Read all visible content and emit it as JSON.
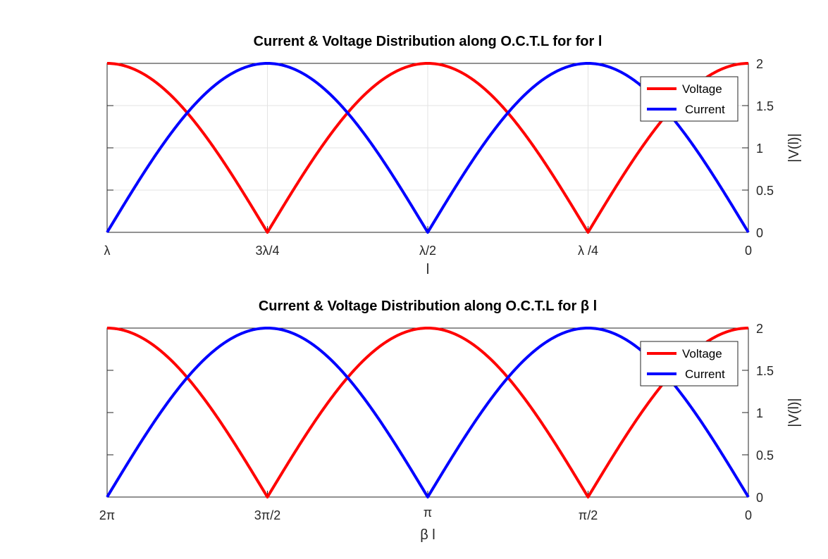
{
  "chart_data": [
    {
      "type": "line",
      "title": "Current & Voltage Distribution along O.C.T.L for for l",
      "xlabel": "l",
      "ylabel": "|V(l)|",
      "x_tick_labels": [
        "λ",
        "3λ/4",
        "λ/2",
        "λ /4",
        "0"
      ],
      "y_tick_labels": [
        "0",
        "0.5",
        "1",
        "1.5",
        "2"
      ],
      "xlim": [
        0,
        6.2832
      ],
      "x_reversed": true,
      "ylim": [
        0,
        2
      ],
      "y_axis_location": "right",
      "grid": true,
      "legend_position": "top-right",
      "series": [
        {
          "name": "Voltage",
          "color": "#ff0000",
          "function": "2*|cos(x)|"
        },
        {
          "name": "Current",
          "color": "#0000ff",
          "function": "2*|sin(x)|"
        }
      ]
    },
    {
      "type": "line",
      "title": "Current & Voltage Distribution along O.C.T.L for β l",
      "xlabel": "β l",
      "ylabel": "|V(l)|",
      "x_tick_labels": [
        "2π",
        "3π/2",
        "π",
        "π/2",
        "0"
      ],
      "y_tick_labels": [
        "0",
        "0.5",
        "1",
        "1.5",
        "2"
      ],
      "xlim": [
        0,
        6.2832
      ],
      "x_reversed": true,
      "ylim": [
        0,
        2
      ],
      "y_axis_location": "right",
      "grid": false,
      "legend_position": "top-right",
      "series": [
        {
          "name": "Voltage",
          "color": "#ff0000",
          "function": "2*|cos(x)|"
        },
        {
          "name": "Current",
          "color": "#0000ff",
          "function": "2*|sin(x)|"
        }
      ]
    }
  ]
}
